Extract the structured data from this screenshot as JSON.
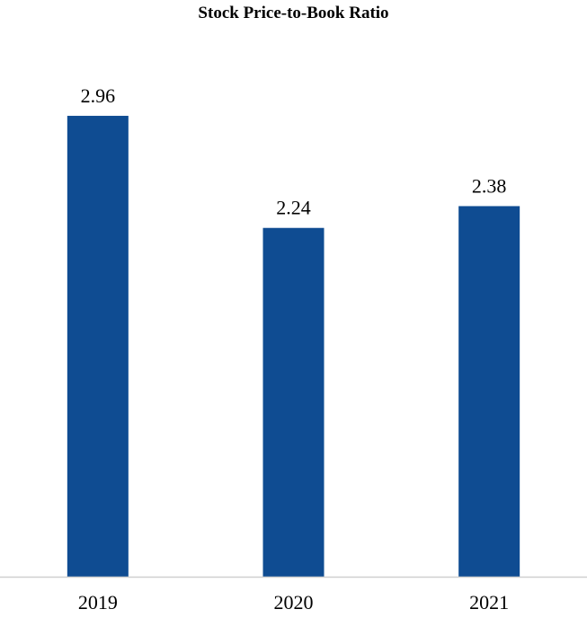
{
  "chart_data": {
    "type": "bar",
    "title": "Stock Price-to-Book Ratio",
    "categories": [
      "2019",
      "2020",
      "2021"
    ],
    "values": [
      2.96,
      2.24,
      2.38
    ],
    "data_labels": [
      "2.96",
      "2.24",
      "2.38"
    ],
    "xlabel": "",
    "ylabel": "",
    "ylim": [
      0,
      3.0
    ],
    "grid": false,
    "legend": "none",
    "bar_color": "#0F4C92",
    "axis_color": "#D0D0D0"
  }
}
